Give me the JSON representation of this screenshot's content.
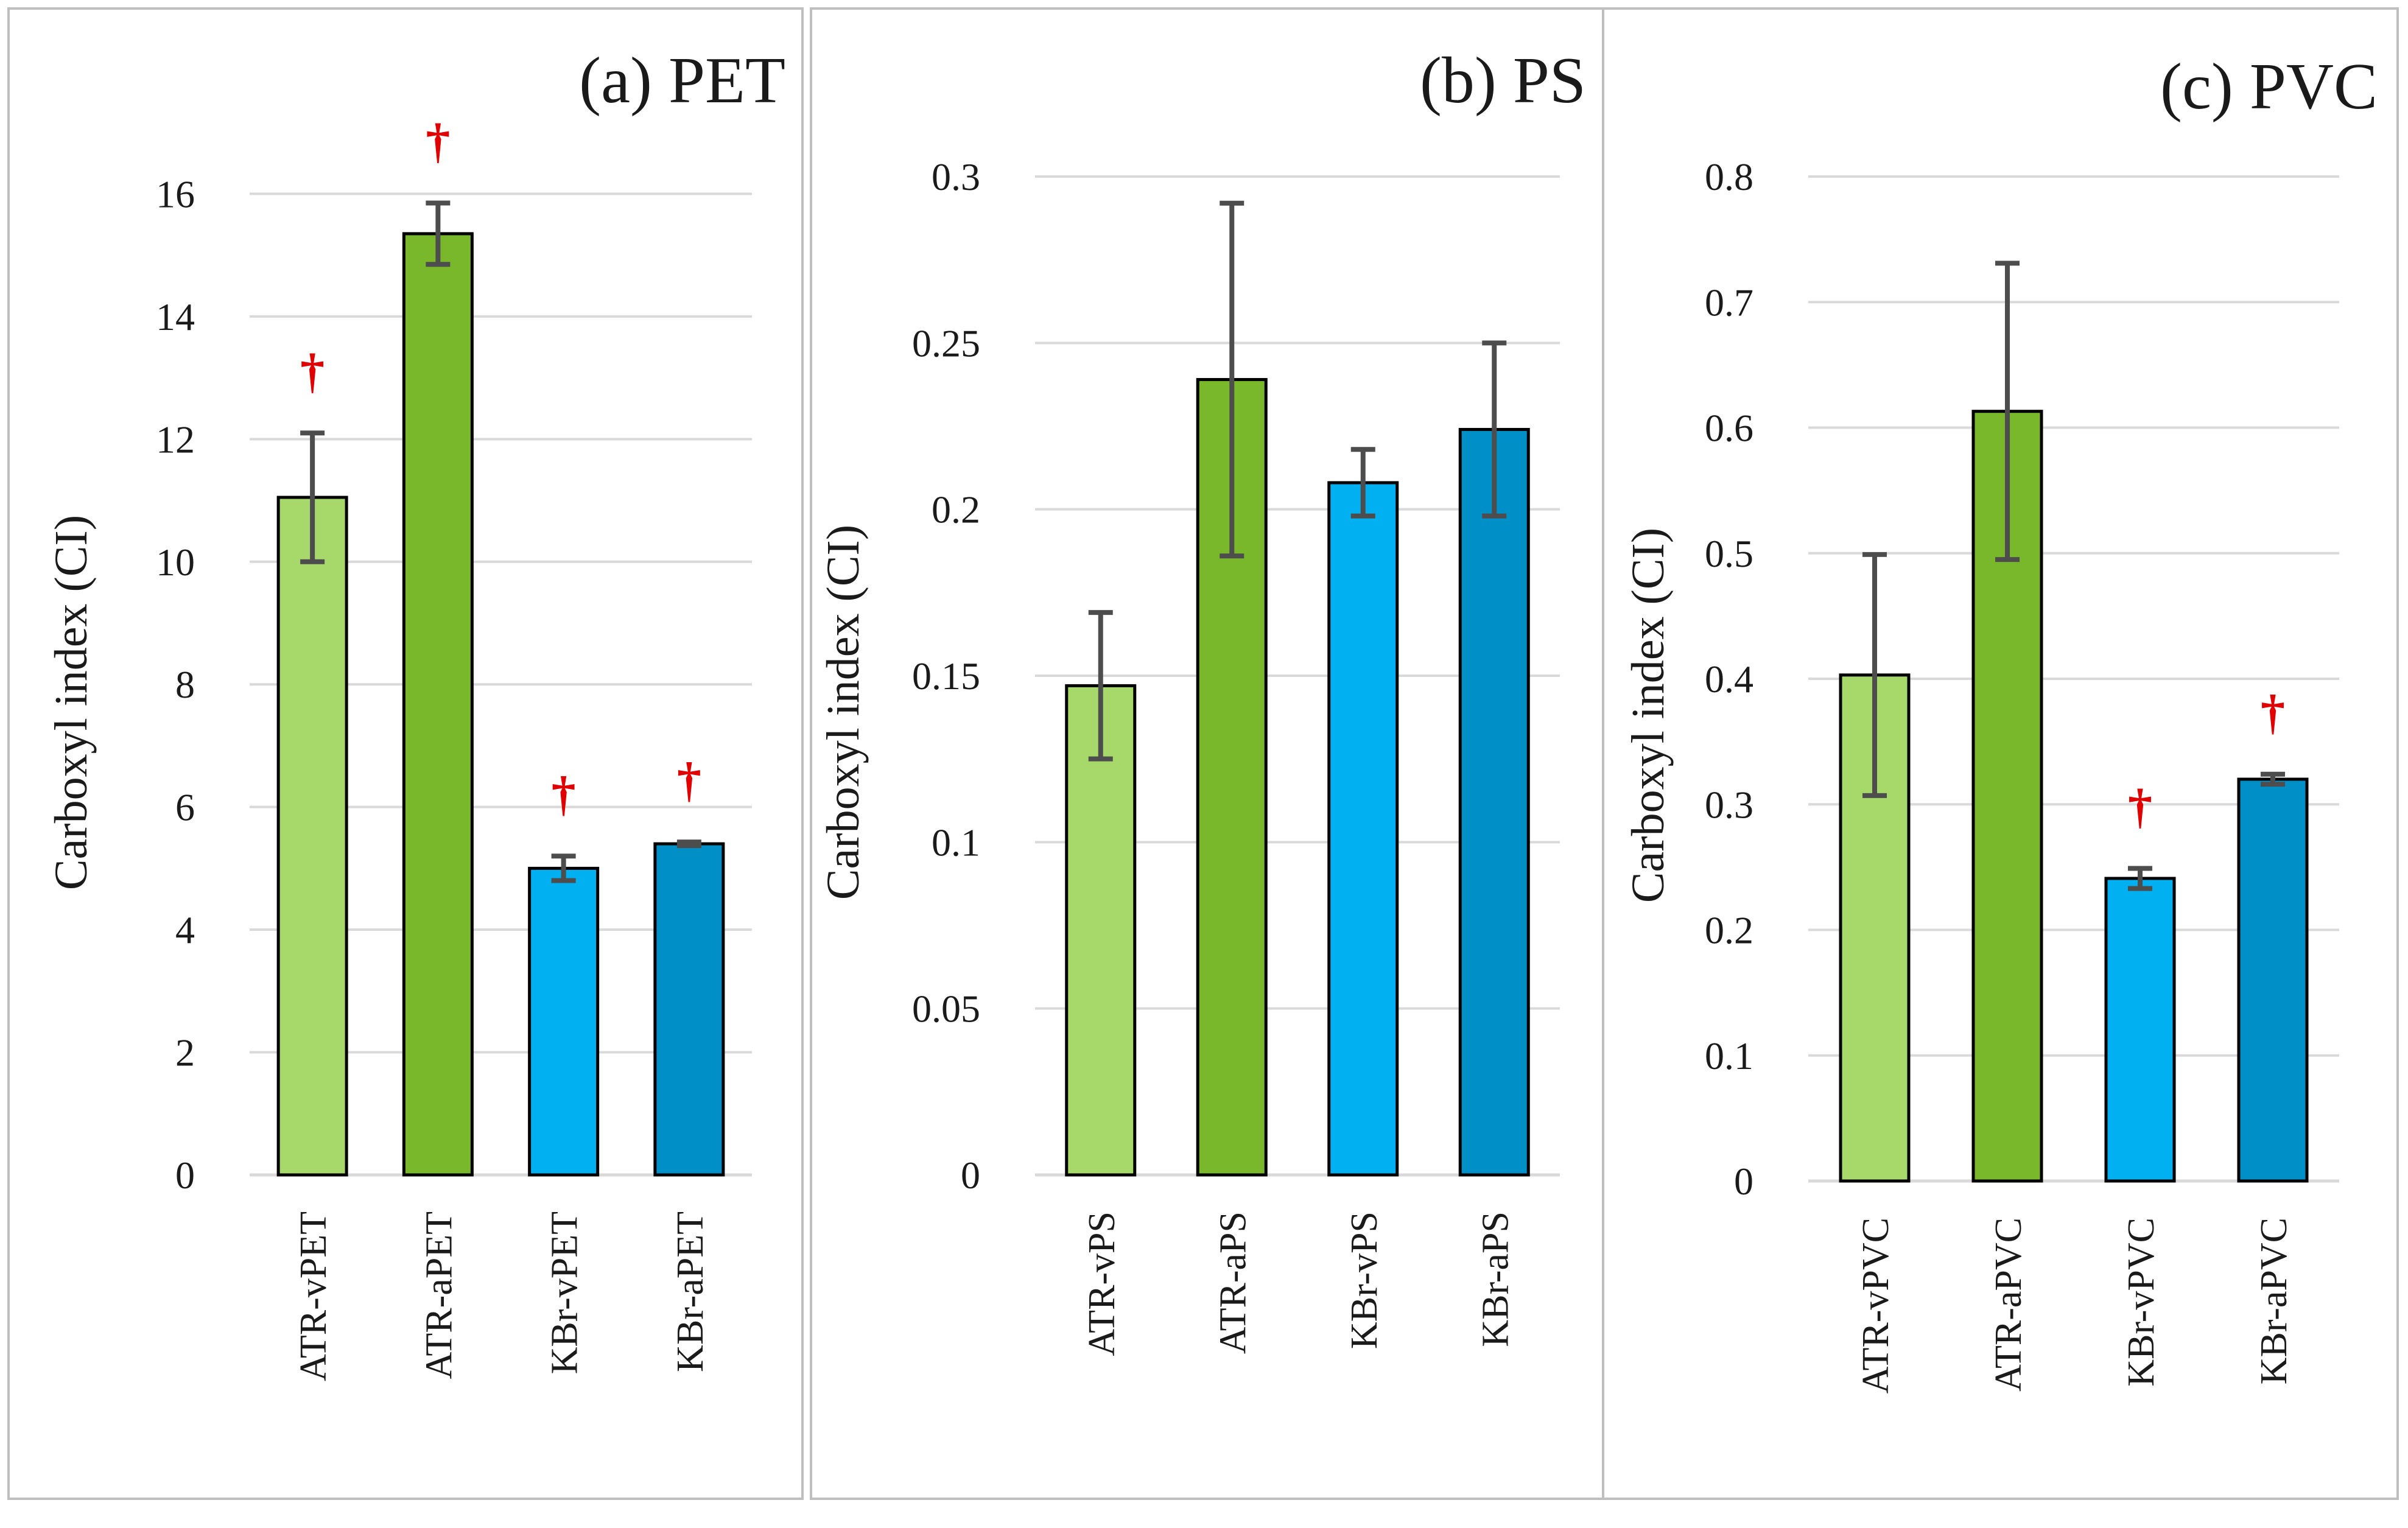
{
  "colors": {
    "ATR-v": "#a6d96a",
    "ATR-a": "#78b82a",
    "KBr-v": "#00b0f0",
    "KBr-a": "#0090c8",
    "grid": "#d9d9d9",
    "errorbar": "#4d4d4d",
    "dagger": "#e00000",
    "border": "#bfbfbf"
  },
  "chart_data": [
    {
      "type": "bar",
      "title": "(a) PET",
      "ylabel": "Carboxyl index (CI)",
      "xlabel": "",
      "ylim": [
        0,
        16
      ],
      "yticks": [
        "0",
        "2",
        "4",
        "6",
        "8",
        "10",
        "12",
        "14",
        "16"
      ],
      "yticks_values": [
        0,
        2,
        4,
        6,
        8,
        10,
        12,
        14,
        16
      ],
      "ymax_grid": 16.6,
      "grid": true,
      "categories": [
        "ATR-vPET",
        "ATR-aPET",
        "KBr-vPET",
        "KBr-aPET"
      ],
      "values": [
        11.05,
        15.35,
        5.0,
        5.4
      ],
      "errors": [
        1.05,
        0.5,
        0.2,
        0.03
      ],
      "significance": [
        "†",
        "†",
        "†",
        "†"
      ],
      "color_keys": [
        "ATR-v",
        "ATR-a",
        "KBr-v",
        "KBr-a"
      ]
    },
    {
      "type": "bar",
      "title": "(b) PS",
      "ylabel": "Carboxyl index (CI)",
      "xlabel": "",
      "ylim": [
        0,
        0.3
      ],
      "yticks": [
        "0",
        "0.05",
        "0.1",
        "0.15",
        "0.2",
        "0.25",
        "0.3"
      ],
      "yticks_values": [
        0,
        0.05,
        0.1,
        0.15,
        0.2,
        0.25,
        0.3
      ],
      "ymax_grid": 0.3,
      "grid": true,
      "categories": [
        "ATR-vPS",
        "ATR-aPS",
        "KBr-vPS",
        "KBr-aPS"
      ],
      "values": [
        0.147,
        0.239,
        0.208,
        0.224
      ],
      "errors": [
        0.022,
        0.053,
        0.01,
        0.026
      ],
      "significance": [
        "",
        "",
        "",
        ""
      ],
      "color_keys": [
        "ATR-v",
        "ATR-a",
        "KBr-v",
        "KBr-a"
      ]
    },
    {
      "type": "bar",
      "title": "(c) PVC",
      "ylabel": "Carboxyl index (CI)",
      "xlabel": "",
      "ylim": [
        0,
        0.8
      ],
      "yticks": [
        "0",
        "0.1",
        "0.2",
        "0.3",
        "0.4",
        "0.5",
        "0.6",
        "0.7",
        "0.8"
      ],
      "yticks_values": [
        0,
        0.1,
        0.2,
        0.3,
        0.4,
        0.5,
        0.6,
        0.7,
        0.8
      ],
      "ymax_grid": 0.8,
      "grid": true,
      "categories": [
        "ATR-vPVC",
        "ATR-aPVC",
        "KBr-vPVC",
        "KBr-aPVC"
      ],
      "values": [
        0.403,
        0.613,
        0.241,
        0.32
      ],
      "errors": [
        0.096,
        0.118,
        0.008,
        0.004
      ],
      "significance": [
        "",
        "",
        "†",
        "†"
      ],
      "color_keys": [
        "ATR-v",
        "ATR-a",
        "KBr-v",
        "KBr-a"
      ]
    }
  ]
}
